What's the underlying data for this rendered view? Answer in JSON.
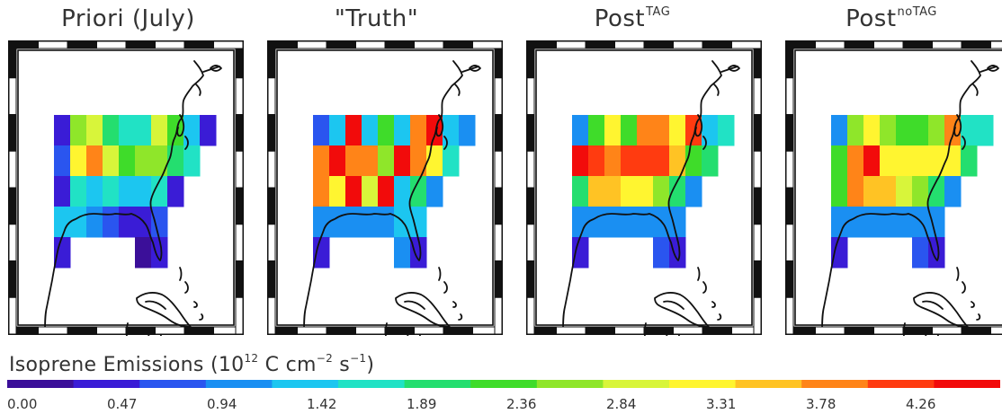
{
  "panels": [
    {
      "title": "Priori (July)",
      "superscript": ""
    },
    {
      "title": "\"Truth\"",
      "superscript": ""
    },
    {
      "title": "Post",
      "superscript": "TAG"
    },
    {
      "title": "Post",
      "superscript": "noTAG"
    }
  ],
  "colorbar": {
    "label_prefix": "Isoprene Emissions (10",
    "label_exp1": "12",
    "label_mid1": " C cm",
    "label_exp2": "−2",
    "label_mid2": " s",
    "label_exp3": "−1",
    "label_suffix": ")",
    "ticks": [
      "0.00",
      "0.47",
      "0.94",
      "1.42",
      "1.89",
      "2.36",
      "2.84",
      "3.31",
      "3.78",
      "4.26"
    ],
    "colors": [
      "#3b0f99",
      "#3a1cd6",
      "#2a55ef",
      "#1a8ff2",
      "#1cc6f0",
      "#21e2c5",
      "#24de6f",
      "#3fdc2a",
      "#8fe62a",
      "#d8f53a",
      "#fff530",
      "#ffc324",
      "#ff8418",
      "#ff3b10",
      "#f20b0b"
    ]
  }
}
